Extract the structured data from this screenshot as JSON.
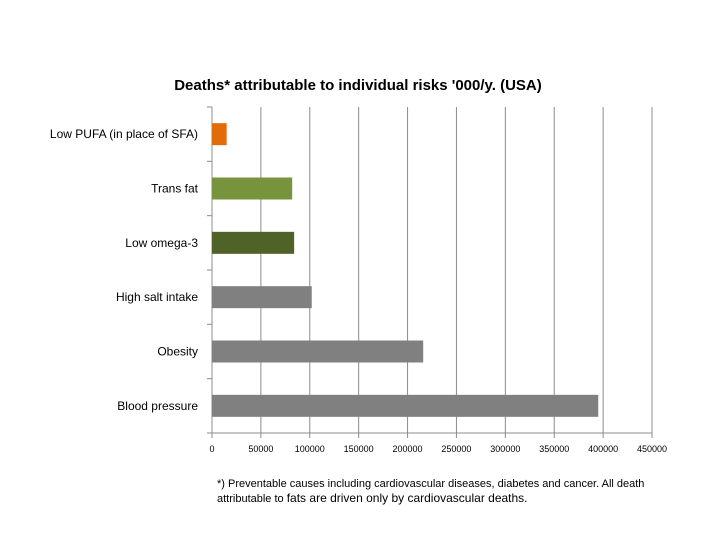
{
  "chart_data": {
    "type": "bar",
    "orientation": "horizontal",
    "title": "Deaths* attributable to individual risks '000/y. (USA)",
    "categories": [
      "Low PUFA (in place of SFA)",
      "Trans fat",
      "Low omega-3",
      "High salt intake",
      "Obesity",
      "Blood pressure"
    ],
    "values": [
      15000,
      82000,
      84000,
      102000,
      216000,
      395000
    ],
    "colors": [
      "#e36c0a",
      "#77933c",
      "#4f6228",
      "#808080",
      "#808080",
      "#808080"
    ],
    "xlim": [
      0,
      450000
    ],
    "xticks": [
      "0",
      "50000",
      "100000",
      "150000",
      "200000",
      "250000",
      "300000",
      "350000",
      "400000",
      "450000"
    ],
    "grid": "vertical",
    "xlabel": "",
    "ylabel": ""
  },
  "footnote": {
    "line1": "*) Preventable causes including cardiovascular diseases, diabetes and cancer. All death",
    "line2_prefix": "attributable to ",
    "line2_rest": "fats are driven only by cardiovascular deaths."
  }
}
